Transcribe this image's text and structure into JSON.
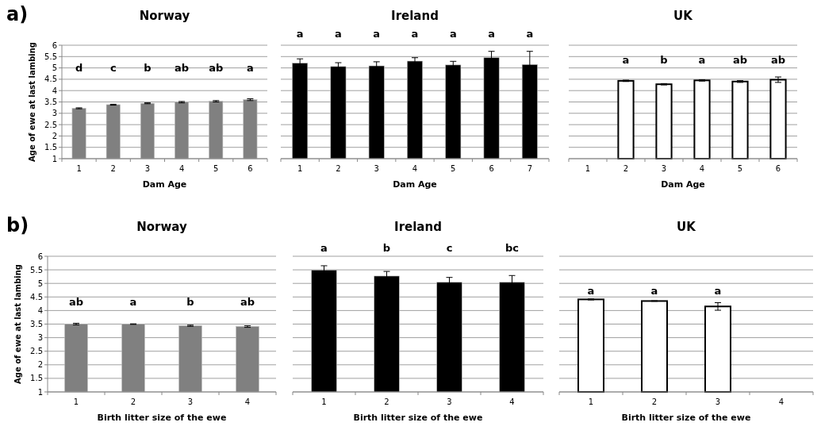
{
  "chart_data": [
    {
      "type": "bar",
      "title": "Norway",
      "xlabel": "Dam Age",
      "ylabel": "Age of ewe at last lambing",
      "categories": [
        "1",
        "2",
        "3",
        "4",
        "5",
        "6"
      ],
      "values": [
        3.22,
        3.38,
        3.44,
        3.49,
        3.53,
        3.6
      ],
      "errors": [
        0.02,
        0.02,
        0.02,
        0.03,
        0.03,
        0.04
      ],
      "color": "#808080",
      "ylim": [
        1,
        6
      ],
      "yticks": [
        1,
        1.5,
        2,
        2.5,
        3,
        3.5,
        4,
        4.5,
        5,
        5.5,
        6
      ],
      "grid": "y",
      "annotations": [
        "a)",
        "d",
        "c",
        "b",
        "ab",
        "ab",
        "a"
      ]
    },
    {
      "type": "bar",
      "title": "Ireland",
      "xlabel": "Dam Age",
      "categories": [
        "1",
        "2",
        "3",
        "4",
        "5",
        "6",
        "7"
      ],
      "values": [
        5.21,
        5.06,
        5.09,
        5.3,
        5.13,
        5.45,
        5.15
      ],
      "errors": [
        0.19,
        0.17,
        0.18,
        0.15,
        0.16,
        0.28,
        0.58
      ],
      "color": "#000000",
      "ylim": [
        1,
        6
      ],
      "yticks": [
        1,
        1.5,
        2,
        2.5,
        3,
        3.5,
        4,
        4.5,
        5,
        5.5,
        6
      ],
      "grid": "y",
      "tick_labels": "x",
      "annotations": [
        "a",
        "a",
        "a",
        "a",
        "a",
        "a",
        "a"
      ]
    },
    {
      "type": "bar",
      "title": "UK",
      "xlabel": "Dam Age",
      "categories": [
        "1",
        "2",
        "3",
        "4",
        "5",
        "6"
      ],
      "values": [
        null,
        4.43,
        4.28,
        4.45,
        4.4,
        4.48
      ],
      "errors": [
        null,
        0.03,
        0.03,
        0.03,
        0.04,
        0.12
      ],
      "color": "#ffffff",
      "ylim": [
        1,
        6
      ],
      "yticks": [
        1,
        1.5,
        2,
        2.5,
        3,
        3.5,
        4,
        4.5,
        5,
        5.5,
        6
      ],
      "grid": "y",
      "tick_labels": "x",
      "annotations": [
        "a",
        "b",
        "a",
        "ab",
        "ab"
      ]
    },
    {
      "type": "bar",
      "title": "Norway",
      "xlabel": "Birth litter size of the ewe",
      "ylabel": "Age of ewe at last lambing",
      "categories": [
        "1",
        "2",
        "3",
        "4"
      ],
      "values": [
        3.5,
        3.5,
        3.44,
        3.41
      ],
      "errors": [
        0.03,
        0.01,
        0.02,
        0.03
      ],
      "color": "#808080",
      "ylim": [
        1,
        6
      ],
      "yticks": [
        1,
        1.5,
        2,
        2.5,
        3,
        3.5,
        4,
        4.5,
        5,
        5.5,
        6
      ],
      "grid": "y",
      "annotations": [
        "b)",
        "ab",
        "a",
        "b",
        "ab"
      ]
    },
    {
      "type": "bar",
      "title": "Ireland",
      "xlabel": "Birth litter size of the ewe",
      "categories": [
        "1",
        "2",
        "3",
        "4"
      ],
      "values": [
        5.49,
        5.27,
        5.04,
        5.04
      ],
      "errors": [
        0.16,
        0.17,
        0.18,
        0.25
      ],
      "color": "#000000",
      "ylim": [
        1,
        6
      ],
      "yticks": [
        1,
        1.5,
        2,
        2.5,
        3,
        3.5,
        4,
        4.5,
        5,
        5.5,
        6
      ],
      "grid": "y",
      "tick_labels": "x",
      "annotations": [
        "a",
        "b",
        "c",
        "bc"
      ]
    },
    {
      "type": "bar",
      "title": "UK",
      "xlabel": "Birth litter size of the ewe",
      "categories": [
        "1",
        "2",
        "3",
        "4"
      ],
      "values": [
        4.41,
        4.35,
        4.15,
        null
      ],
      "errors": [
        0.02,
        0.01,
        0.14,
        null
      ],
      "color": "#ffffff",
      "ylim": [
        1,
        6
      ],
      "yticks": [
        1,
        1.5,
        2,
        2.5,
        3,
        3.5,
        4,
        4.5,
        5,
        5.5,
        6
      ],
      "grid": "y",
      "tick_labels": "x",
      "annotations": [
        "a",
        "a",
        "a"
      ]
    }
  ]
}
